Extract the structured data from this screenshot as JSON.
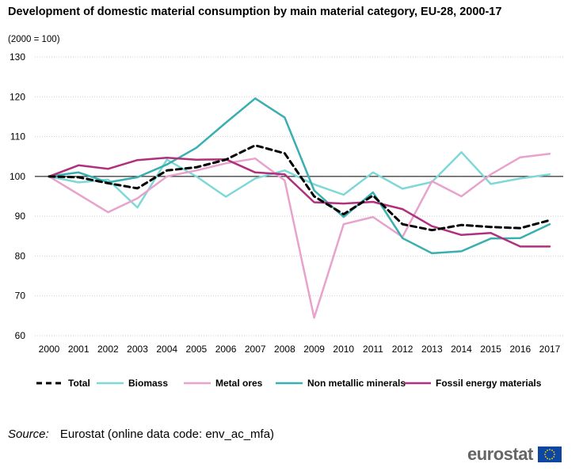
{
  "title": "Development of domestic material consumption by main material category, EU-28, 2000-17",
  "subtitle": "(2000 = 100)",
  "source_label": "Source:",
  "source_text": "Eurostat (online data code: env_ac_mfa)",
  "logo_text": "eurostat",
  "chart_data": {
    "type": "line",
    "title": "Development of domestic material consumption by main material category, EU-28, 2000-17",
    "xlabel": "",
    "ylabel": "",
    "ylim": [
      60,
      130
    ],
    "yticks": [
      60,
      70,
      80,
      90,
      100,
      110,
      120,
      130
    ],
    "grid": true,
    "legend_position": "bottom",
    "categories": [
      "2000",
      "2001",
      "2002",
      "2003",
      "2004",
      "2005",
      "2006",
      "2007",
      "2008",
      "2009",
      "2010",
      "2011",
      "2012",
      "2013",
      "2014",
      "2015",
      "2016",
      "2017"
    ],
    "series": [
      {
        "name": "Total",
        "color": "#000000",
        "dashed": true,
        "values": [
          100,
          99.8,
          98.3,
          97.0,
          101.5,
          102.3,
          104.2,
          107.8,
          105.8,
          95.0,
          90.5,
          95.2,
          88.0,
          86.5,
          87.8,
          87.3,
          87.0,
          89.0
        ]
      },
      {
        "name": "Biomass",
        "color": "#7fd8d8",
        "dashed": false,
        "values": [
          100,
          98.5,
          99.2,
          92.2,
          104.2,
          100.0,
          94.9,
          99.5,
          101.5,
          98.0,
          95.4,
          101.0,
          96.9,
          98.6,
          106.1,
          98.1,
          99.5,
          100.5
        ]
      },
      {
        "name": "Metal ores",
        "color": "#e8a3cc",
        "dashed": false,
        "values": [
          100,
          95.5,
          91.0,
          94.5,
          100.0,
          101.5,
          103.3,
          104.5,
          99.0,
          64.5,
          88.0,
          89.8,
          84.8,
          98.8,
          95.0,
          100.5,
          104.8,
          105.7
        ]
      },
      {
        "name": "Non metallic minerals",
        "color": "#3aafaf",
        "dashed": false,
        "values": [
          100,
          101.0,
          98.5,
          99.8,
          103.0,
          107.2,
          113.5,
          119.6,
          114.8,
          96.5,
          89.8,
          96.0,
          84.5,
          80.7,
          81.2,
          84.4,
          84.5,
          88.0
        ]
      },
      {
        "name": "Fossil energy materials",
        "color": "#b0307e",
        "dashed": false,
        "values": [
          100,
          102.8,
          101.9,
          104.1,
          104.7,
          104.2,
          104.3,
          101.0,
          100.5,
          93.5,
          93.2,
          93.6,
          91.8,
          87.5,
          85.3,
          85.8,
          82.4,
          82.4
        ]
      }
    ]
  }
}
